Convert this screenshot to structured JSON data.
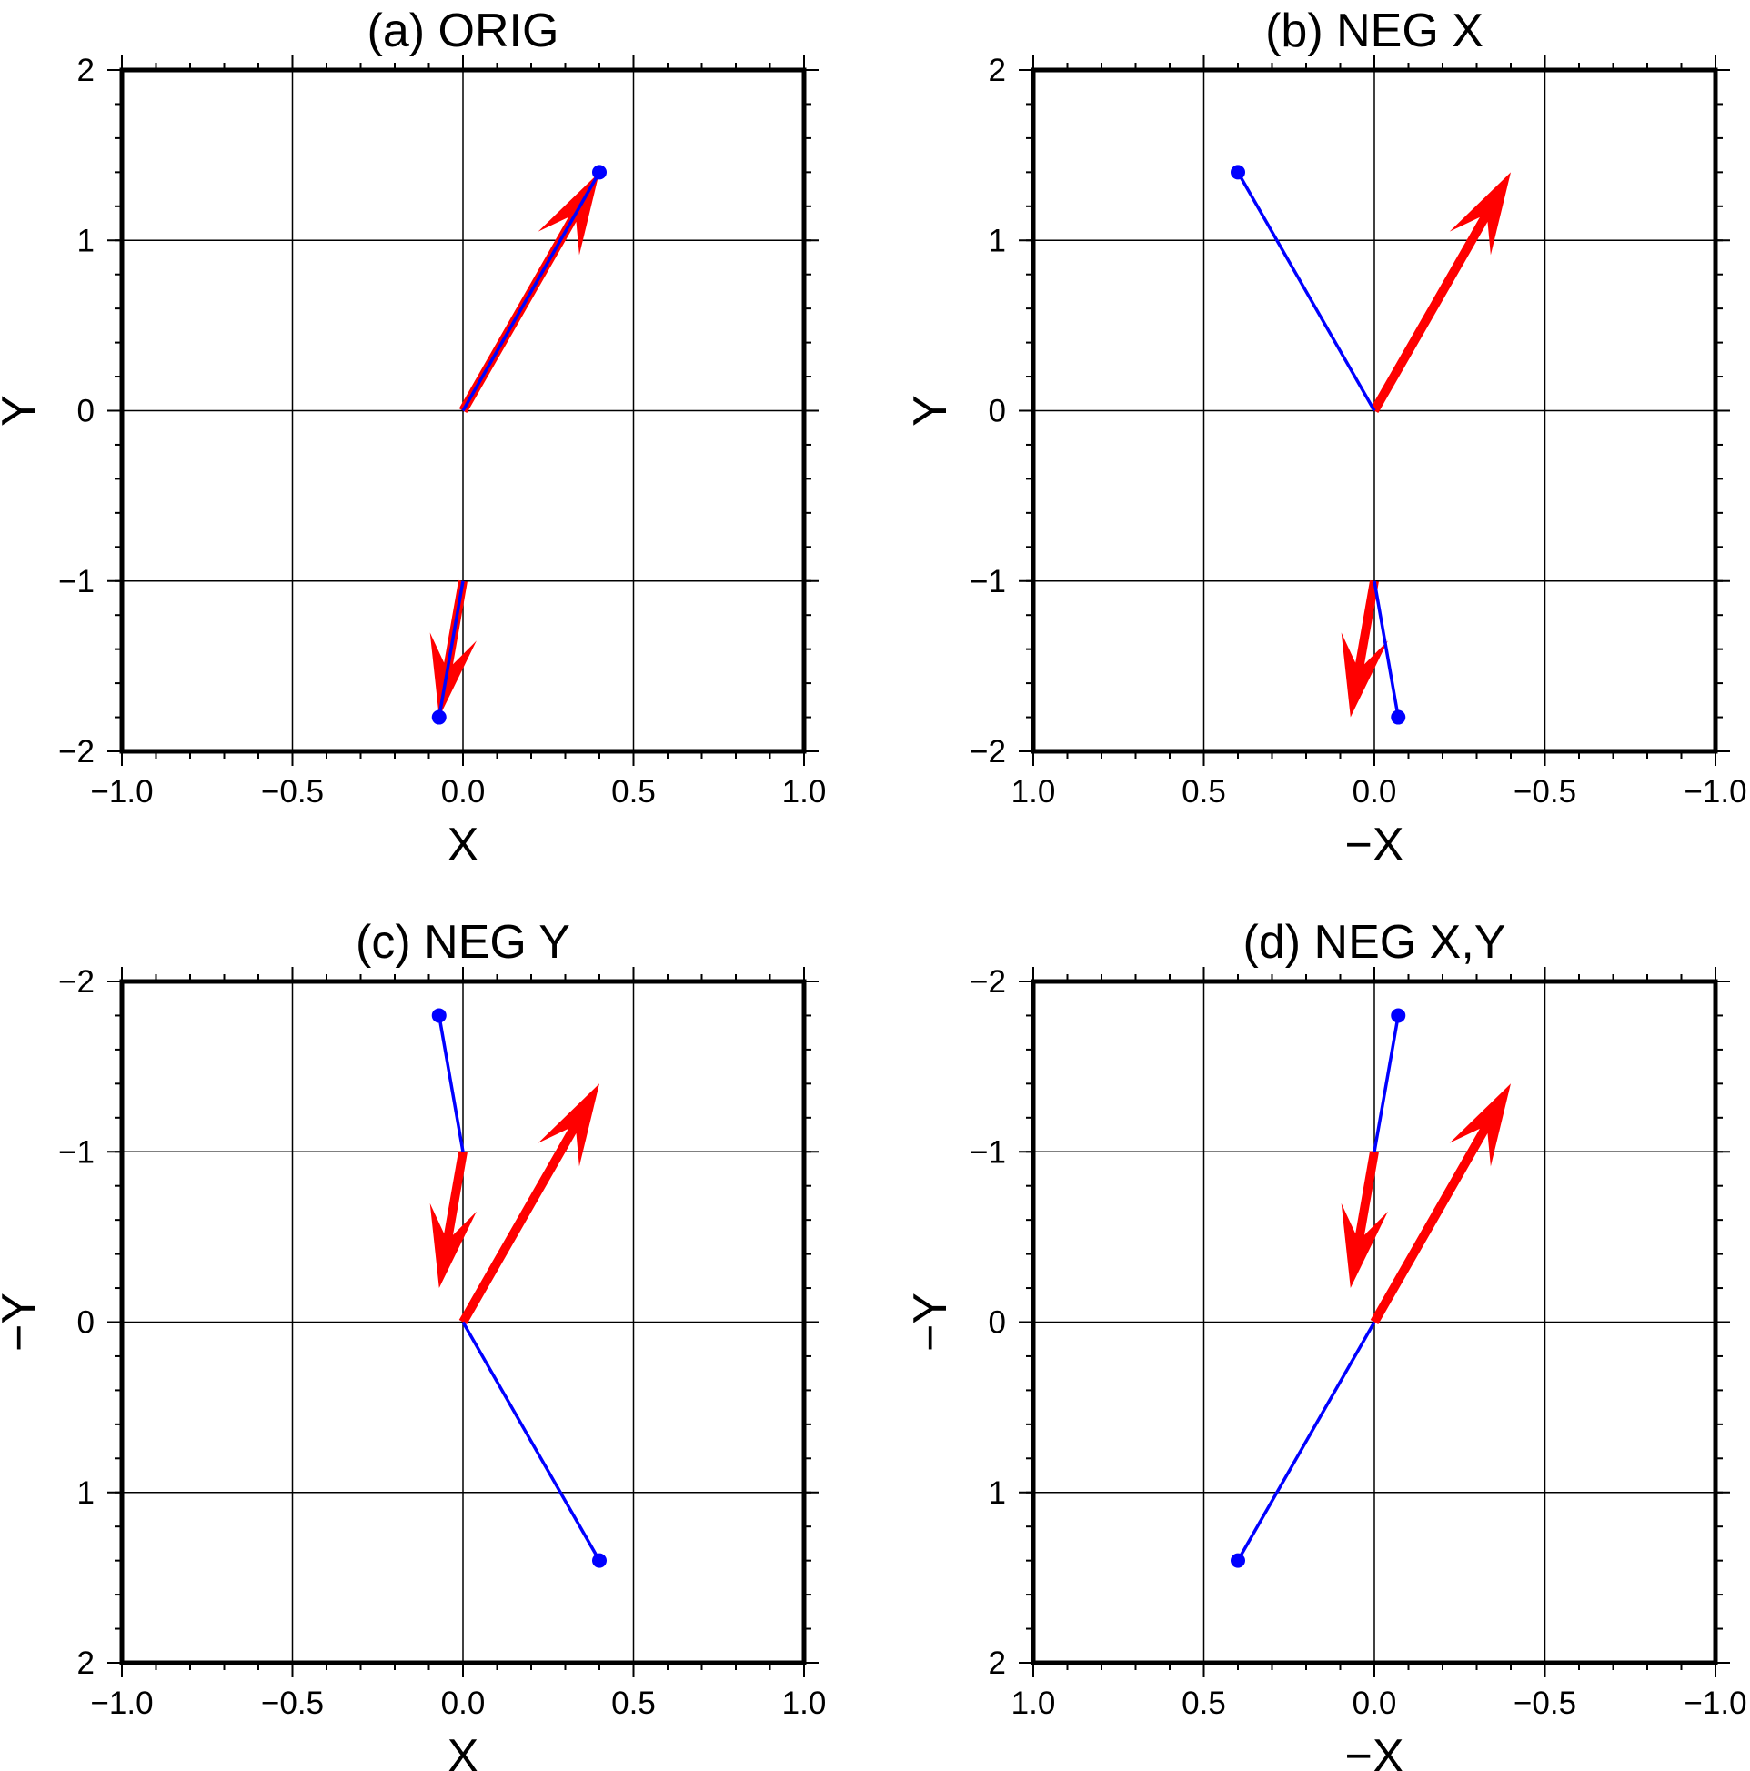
{
  "chart_data": [
    {
      "type": "vector",
      "title": "(a) ORIG",
      "xlabel": "X",
      "ylabel": "Y",
      "xlim": [
        -1.0,
        1.0
      ],
      "ylim": [
        -2,
        2
      ],
      "x_reversed": false,
      "y_reversed": false,
      "xticks": [
        -1.0,
        -0.5,
        0.0,
        0.5,
        1.0
      ],
      "xtick_labels": [
        "−1.0",
        "−0.5",
        "0.0",
        "0.5",
        "1.0"
      ],
      "yticks": [
        -2,
        -1,
        0,
        1,
        2
      ],
      "ytick_labels": [
        "−2",
        "−1",
        "0",
        "1",
        "2"
      ],
      "grid": true
    },
    {
      "type": "vector",
      "title": "(b) NEG X",
      "xlabel": "−X",
      "ylabel": "Y",
      "xlim": [
        -1.0,
        1.0
      ],
      "ylim": [
        -2,
        2
      ],
      "x_reversed": true,
      "y_reversed": false,
      "xticks": [
        1.0,
        0.5,
        0.0,
        -0.5,
        -1.0
      ],
      "xtick_labels": [
        "1.0",
        "0.5",
        "0.0",
        "−0.5",
        "−1.0"
      ],
      "yticks": [
        -2,
        -1,
        0,
        1,
        2
      ],
      "ytick_labels": [
        "−2",
        "−1",
        "0",
        "1",
        "2"
      ],
      "grid": true
    },
    {
      "type": "vector",
      "title": "(c) NEG Y",
      "xlabel": "X",
      "ylabel": "−Y",
      "xlim": [
        -1.0,
        1.0
      ],
      "ylim": [
        -2,
        2
      ],
      "x_reversed": false,
      "y_reversed": true,
      "xticks": [
        -1.0,
        -0.5,
        0.0,
        0.5,
        1.0
      ],
      "xtick_labels": [
        "−1.0",
        "−0.5",
        "0.0",
        "0.5",
        "1.0"
      ],
      "yticks": [
        -2,
        -1,
        0,
        1,
        2
      ],
      "ytick_labels": [
        "−2",
        "−1",
        "0",
        "1",
        "2"
      ],
      "grid": true
    },
    {
      "type": "vector",
      "title": "(d) NEG X,Y",
      "xlabel": "−X",
      "ylabel": "−Y",
      "xlim": [
        -1.0,
        1.0
      ],
      "ylim": [
        -2,
        2
      ],
      "x_reversed": true,
      "y_reversed": true,
      "xticks": [
        1.0,
        0.5,
        0.0,
        -0.5,
        -1.0
      ],
      "xtick_labels": [
        "1.0",
        "0.5",
        "0.0",
        "−0.5",
        "−1.0"
      ],
      "yticks": [
        -2,
        -1,
        0,
        1,
        2
      ],
      "ytick_labels": [
        "−2",
        "−1",
        "0",
        "1",
        "2"
      ],
      "grid": true
    }
  ],
  "vectors": [
    {
      "x0": 0.0,
      "y0": 0.0,
      "dx": 0.4,
      "dy": 1.4
    },
    {
      "x0": 0.0,
      "y0": -1.0,
      "dx": -0.07,
      "dy": -0.8
    }
  ],
  "lines": [
    {
      "x": [
        0.0,
        0.4
      ],
      "y": [
        0.0,
        1.4
      ]
    },
    {
      "x": [
        0.0,
        -0.07
      ],
      "y": [
        -1.0,
        -1.8
      ]
    }
  ],
  "colors": {
    "vector": "#ff0000",
    "line": "#0000ff",
    "grid": "#000000",
    "frame": "#000000"
  }
}
